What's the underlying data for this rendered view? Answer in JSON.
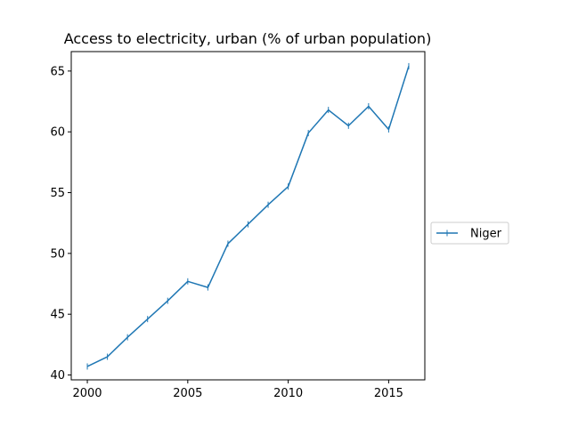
{
  "chart_data": {
    "type": "line",
    "title": "Access to electricity, urban (% of urban population)",
    "xlabel": "",
    "ylabel": "",
    "xlim": [
      1999.2,
      2016.8
    ],
    "ylim": [
      39.6,
      66.6
    ],
    "x_ticks": [
      2000,
      2005,
      2010,
      2015
    ],
    "y_ticks": [
      40,
      45,
      50,
      55,
      60,
      65
    ],
    "grid": false,
    "legend_position": "center-right, outside plot",
    "series": [
      {
        "name": "Niger",
        "color": "#1f77b4",
        "marker": "|",
        "x": [
          2000,
          2001,
          2002,
          2003,
          2004,
          2005,
          2006,
          2007,
          2008,
          2009,
          2010,
          2011,
          2012,
          2013,
          2014,
          2015,
          2016
        ],
        "values": [
          40.7,
          41.5,
          43.1,
          44.6,
          46.1,
          47.7,
          47.2,
          50.8,
          52.4,
          54.0,
          55.5,
          59.9,
          61.8,
          60.5,
          62.1,
          60.2,
          65.4
        ]
      }
    ]
  }
}
